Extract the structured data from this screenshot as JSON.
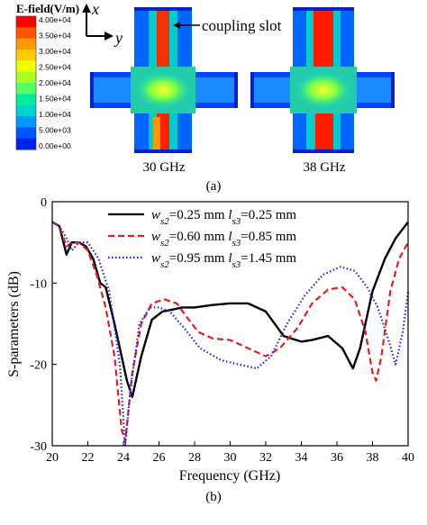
{
  "field_panel": {
    "colorbar_title": "E-field(V/m)",
    "colorbar_labels": [
      "4.00e+04",
      "3.50e+04",
      "3.00e+04",
      "2.50e+04",
      "2.00e+04",
      "1.50e+04",
      "1.00e+04",
      "5.00e+03",
      "0.00e+00"
    ],
    "colorbar_colors": [
      "#ff0000",
      "#ff5500",
      "#ff9900",
      "#ffcc00",
      "#eeff00",
      "#aaff22",
      "#55ff66",
      "#00ee99",
      "#00d0d0",
      "#0099ff",
      "#0055ff",
      "#0022ee"
    ],
    "axis_x": "x",
    "axis_y": "y",
    "annotation": "coupling slot",
    "label_left": "30 GHz",
    "label_right": "38 GHz",
    "panel_label": "(a)"
  },
  "chart_panel": {
    "panel_label": "(b)"
  },
  "chart_data": {
    "type": "line",
    "xlabel": "Frequency (GHz)",
    "ylabel": "S-parameters (dB)",
    "xlim": [
      20,
      40
    ],
    "ylim": [
      -30,
      0
    ],
    "xticks": [
      "20",
      "22",
      "24",
      "26",
      "28",
      "30",
      "32",
      "34",
      "36",
      "38",
      "40"
    ],
    "yticks": [
      "0",
      "-10",
      "-20",
      "-30"
    ],
    "legend_position": "top-right",
    "series": [
      {
        "name": "ws2=0.25 mm ls3=0.25 mm",
        "color": "#000000",
        "dash": "solid",
        "points": [
          [
            20,
            -2.5
          ],
          [
            20.4,
            -3
          ],
          [
            20.8,
            -6.5
          ],
          [
            21.1,
            -5
          ],
          [
            21.5,
            -5
          ],
          [
            21.9,
            -5.5
          ],
          [
            22.3,
            -7
          ],
          [
            22.7,
            -10
          ],
          [
            23,
            -10.5
          ],
          [
            23.5,
            -15
          ],
          [
            24.2,
            -22
          ],
          [
            24.5,
            -24
          ],
          [
            25,
            -19
          ],
          [
            25.6,
            -14.5
          ],
          [
            26.2,
            -13.5
          ],
          [
            26.7,
            -13.3
          ],
          [
            27.3,
            -13
          ],
          [
            28,
            -13
          ],
          [
            29,
            -12.7
          ],
          [
            30,
            -12.5
          ],
          [
            31,
            -12.5
          ],
          [
            32,
            -13.5
          ],
          [
            33,
            -16.5
          ],
          [
            34,
            -17.2
          ],
          [
            34.6,
            -17
          ],
          [
            35.5,
            -16.5
          ],
          [
            36.3,
            -18
          ],
          [
            36.9,
            -20.5
          ],
          [
            37.3,
            -18
          ],
          [
            38,
            -11
          ],
          [
            38.7,
            -7
          ],
          [
            39.3,
            -4.5
          ],
          [
            40,
            -2.5
          ]
        ]
      },
      {
        "name": "ws2=0.60 mm ls3=0.85 mm",
        "color": "#e02020",
        "dash": "dashed",
        "points": [
          [
            20,
            -2.5
          ],
          [
            20.4,
            -3
          ],
          [
            20.8,
            -5.5
          ],
          [
            21.1,
            -5
          ],
          [
            21.5,
            -5
          ],
          [
            22,
            -6
          ],
          [
            22.5,
            -9
          ],
          [
            23,
            -13
          ],
          [
            23.5,
            -19
          ],
          [
            23.9,
            -28
          ],
          [
            24.1,
            -29.5
          ],
          [
            24.5,
            -21
          ],
          [
            25,
            -15
          ],
          [
            25.6,
            -12.5
          ],
          [
            26.3,
            -12
          ],
          [
            27,
            -12.5
          ],
          [
            27.5,
            -14
          ],
          [
            28.2,
            -16
          ],
          [
            29,
            -16.8
          ],
          [
            30,
            -17
          ],
          [
            31,
            -18
          ],
          [
            32,
            -19
          ],
          [
            32.8,
            -18
          ],
          [
            33.8,
            -15.5
          ],
          [
            34.6,
            -12.5
          ],
          [
            35.5,
            -10.8
          ],
          [
            36.3,
            -10.5
          ],
          [
            37,
            -12
          ],
          [
            37.6,
            -16
          ],
          [
            38,
            -21
          ],
          [
            38.2,
            -22
          ],
          [
            38.5,
            -19
          ],
          [
            39,
            -11
          ],
          [
            39.5,
            -7
          ],
          [
            40,
            -5
          ]
        ]
      },
      {
        "name": "ws2=0.95 mm ls3=1.45 mm",
        "color": "#2222dd",
        "dash": "dotted",
        "points": [
          [
            20,
            -2.5
          ],
          [
            20.4,
            -3
          ],
          [
            20.8,
            -4.5
          ],
          [
            21.1,
            -6
          ],
          [
            21.5,
            -5
          ],
          [
            22,
            -5
          ],
          [
            22.6,
            -7
          ],
          [
            23.2,
            -11
          ],
          [
            23.8,
            -20
          ],
          [
            24.1,
            -30
          ],
          [
            24.4,
            -23
          ],
          [
            24.9,
            -15
          ],
          [
            25.5,
            -13
          ],
          [
            26,
            -13
          ],
          [
            26.6,
            -13.5
          ],
          [
            27.4,
            -15.5
          ],
          [
            28.3,
            -18
          ],
          [
            29.5,
            -19.5
          ],
          [
            30.5,
            -20
          ],
          [
            31.5,
            -20.5
          ],
          [
            32.3,
            -19
          ],
          [
            33.2,
            -15
          ],
          [
            34.2,
            -11.5
          ],
          [
            35.2,
            -9
          ],
          [
            36.2,
            -8
          ],
          [
            37,
            -8.5
          ],
          [
            37.7,
            -10.5
          ],
          [
            38.3,
            -13
          ],
          [
            38.9,
            -17
          ],
          [
            39.3,
            -20
          ],
          [
            39.7,
            -16
          ],
          [
            40,
            -11
          ]
        ]
      }
    ]
  }
}
